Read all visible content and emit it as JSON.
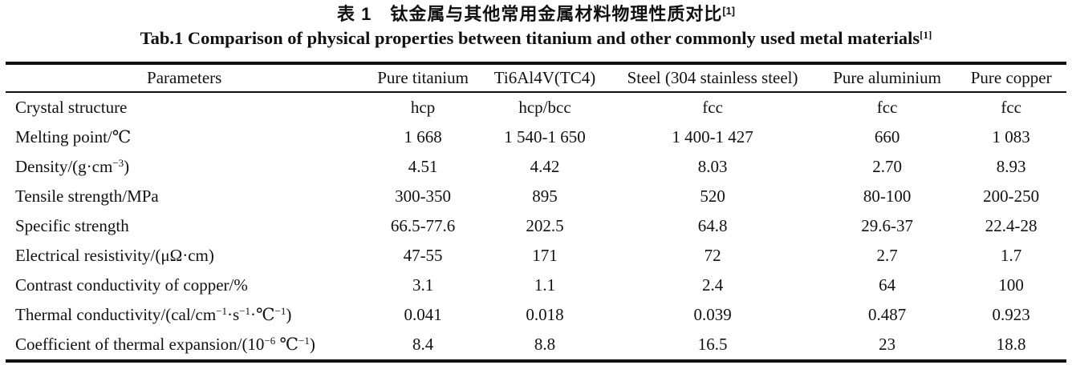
{
  "title": {
    "zh": "表 1　钛金属与其他常用金属材料物理性质对比",
    "zh_ref": "[1]",
    "en": "Tab.1 Comparison of physical properties between titanium and other commonly used metal materials",
    "en_ref": "[1]"
  },
  "table": {
    "columns": [
      "Parameters",
      "Pure titanium",
      "Ti6Al4V(TC4)",
      "Steel (304 stainless steel)",
      "Pure aluminium",
      "Pure copper"
    ],
    "rows": [
      {
        "param": [
          {
            "t": "Crystal structure"
          }
        ],
        "values": [
          "hcp",
          "hcp/bcc",
          "fcc",
          "fcc",
          "fcc"
        ]
      },
      {
        "param": [
          {
            "t": "Melting point/℃"
          }
        ],
        "values": [
          "1 668",
          "1 540-1 650",
          "1 400-1 427",
          "660",
          "1 083"
        ]
      },
      {
        "param": [
          {
            "t": "Density/(g·cm"
          },
          {
            "t": "−3",
            "s": true
          },
          {
            "t": ")"
          }
        ],
        "values": [
          "4.51",
          "4.42",
          "8.03",
          "2.70",
          "8.93"
        ]
      },
      {
        "param": [
          {
            "t": "Tensile strength/MPa"
          }
        ],
        "values": [
          "300-350",
          "895",
          "520",
          "80-100",
          "200-250"
        ]
      },
      {
        "param": [
          {
            "t": "Specific strength"
          }
        ],
        "values": [
          "66.5-77.6",
          "202.5",
          "64.8",
          "29.6-37",
          "22.4-28"
        ]
      },
      {
        "param": [
          {
            "t": "Electrical resistivity/(μΩ·cm)"
          }
        ],
        "values": [
          "47-55",
          "171",
          "72",
          "2.7",
          "1.7"
        ]
      },
      {
        "param": [
          {
            "t": "Contrast conductivity of copper/%"
          }
        ],
        "values": [
          "3.1",
          "1.1",
          "2.4",
          "64",
          "100"
        ]
      },
      {
        "param": [
          {
            "t": "Thermal conductivity/(cal/cm"
          },
          {
            "t": "−1",
            "s": true
          },
          {
            "t": "·s"
          },
          {
            "t": "−1",
            "s": true
          },
          {
            "t": "·℃"
          },
          {
            "t": "−1",
            "s": true
          },
          {
            "t": ")"
          }
        ],
        "values": [
          "0.041",
          "0.018",
          "0.039",
          "0.487",
          "0.923"
        ]
      },
      {
        "param": [
          {
            "t": "Coefficient of thermal expansion/(10"
          },
          {
            "t": "−6",
            "s": true
          },
          {
            "t": " ℃"
          },
          {
            "t": "−1",
            "s": true
          },
          {
            "t": ")"
          }
        ],
        "values": [
          "8.4",
          "8.8",
          "16.5",
          "23",
          "18.8"
        ]
      }
    ]
  }
}
